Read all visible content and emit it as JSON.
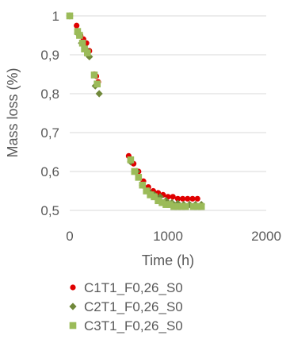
{
  "chart_data": {
    "type": "scatter",
    "xlabel": "Time (h)",
    "ylabel": "Mass loss (%)",
    "xlim": [
      0,
      2000
    ],
    "ylim": [
      0.5,
      1
    ],
    "xticks": [
      0,
      1000,
      2000
    ],
    "xtick_labels": [
      "0",
      "1000",
      "2000"
    ],
    "yticks": [
      0.5,
      0.6,
      0.7,
      0.8,
      0.9,
      1
    ],
    "ytick_labels": [
      "0,5",
      "0,6",
      "0,7",
      "0,8",
      "0,9",
      "1"
    ],
    "grid": "horizontal",
    "legend_position": "bottom",
    "series": [
      {
        "name": "C1T1_F0,26_S0",
        "color": "#e00000",
        "marker": "circle",
        "x": [
          0,
          70,
          110,
          140,
          170,
          200,
          250,
          270,
          290,
          600,
          650,
          700,
          750,
          800,
          850,
          900,
          950,
          1000,
          1050,
          1100,
          1150,
          1200,
          1250,
          1300
        ],
        "y": [
          1.0,
          0.975,
          0.95,
          0.94,
          0.93,
          0.91,
          0.85,
          0.845,
          0.83,
          0.64,
          0.62,
          0.6,
          0.575,
          0.56,
          0.55,
          0.545,
          0.54,
          0.535,
          0.535,
          0.53,
          0.53,
          0.53,
          0.53,
          0.53
        ]
      },
      {
        "name": "C2T1_F0,26_S0",
        "color": "#70883a",
        "marker": "diamond",
        "x": [
          0,
          80,
          120,
          160,
          200,
          260,
          300,
          620,
          680,
          740,
          800,
          860,
          920,
          980,
          1040,
          1100,
          1160,
          1220,
          1280,
          1340
        ],
        "y": [
          1.0,
          0.955,
          0.93,
          0.915,
          0.895,
          0.82,
          0.8,
          0.625,
          0.6,
          0.565,
          0.55,
          0.54,
          0.535,
          0.525,
          0.52,
          0.518,
          0.515,
          0.515,
          0.515,
          0.515
        ]
      },
      {
        "name": "C3T1_F0,26_S0",
        "color": "#9bbb59",
        "marker": "square",
        "x": [
          0,
          80,
          100,
          130,
          150,
          180,
          250,
          280,
          620,
          660,
          700,
          740,
          780,
          820,
          860,
          900,
          940,
          980,
          1020,
          1060,
          1100,
          1140,
          1180,
          1260,
          1300,
          1340
        ],
        "y": [
          1.0,
          0.96,
          0.95,
          0.93,
          0.915,
          0.905,
          0.848,
          0.825,
          0.63,
          0.6,
          0.585,
          0.565,
          0.55,
          0.54,
          0.535,
          0.525,
          0.52,
          0.515,
          0.515,
          0.51,
          0.51,
          0.51,
          0.51,
          0.51,
          0.51,
          0.51
        ]
      }
    ]
  }
}
